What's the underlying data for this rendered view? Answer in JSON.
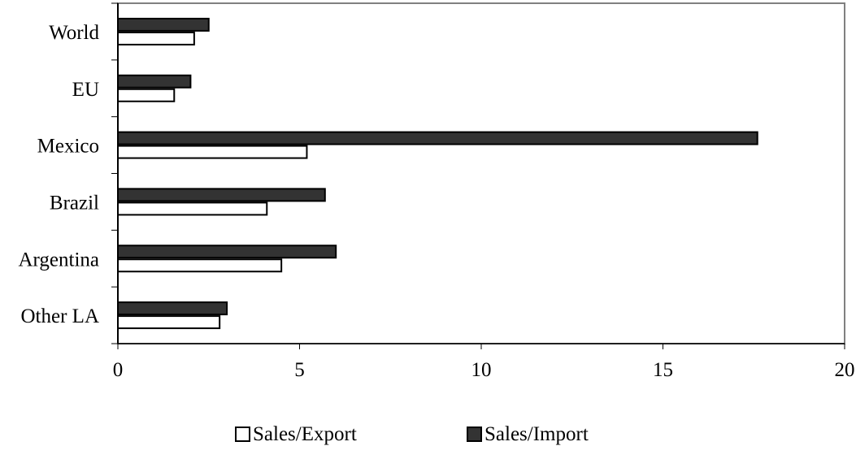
{
  "chart_data": {
    "type": "bar",
    "orientation": "horizontal",
    "categories": [
      "World",
      "EU",
      "Mexico",
      "Brazil",
      "Argentina",
      "Other LA"
    ],
    "series": [
      {
        "name": "Sales/Export",
        "values": [
          2.1,
          1.55,
          5.2,
          4.1,
          4.5,
          2.8
        ],
        "color": "#ffffff"
      },
      {
        "name": "Sales/Import",
        "values": [
          2.5,
          2.0,
          17.6,
          5.7,
          6.0,
          3.0
        ],
        "color": "#333333"
      }
    ],
    "xticks": [
      "0",
      "5",
      "10",
      "15",
      "20"
    ],
    "xlim": [
      0,
      20
    ],
    "grid": false,
    "legend_position": "bottom",
    "title": "",
    "xlabel": "",
    "ylabel": ""
  }
}
